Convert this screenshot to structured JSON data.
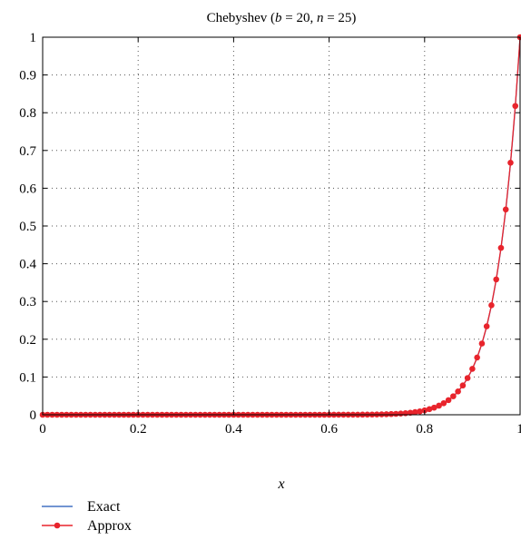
{
  "chart_data": {
    "type": "line",
    "title": {
      "prefix": "Chebyshev (",
      "b_symbol": "b",
      "b_value": " = 20, ",
      "n_symbol": "n",
      "n_value": " = 25)"
    },
    "xlabel": "x",
    "ylabel": "",
    "xlim": [
      0,
      1
    ],
    "ylim": [
      0,
      1
    ],
    "x_ticks": [
      "0",
      "0.2",
      "0.4",
      "0.6",
      "0.8",
      "1"
    ],
    "y_ticks": [
      "0",
      "0.1",
      "0.2",
      "0.3",
      "0.4",
      "0.5",
      "0.6",
      "0.7",
      "0.8",
      "0.9",
      "1"
    ],
    "grid": true,
    "legend_position": "below",
    "series": [
      {
        "name": "Exact",
        "color": "#4472c4",
        "marker": "none",
        "function": "x^20"
      },
      {
        "name": "Approx",
        "color": "#e8242c",
        "marker": "circle",
        "function": "x^20",
        "num_points": 101
      }
    ]
  }
}
